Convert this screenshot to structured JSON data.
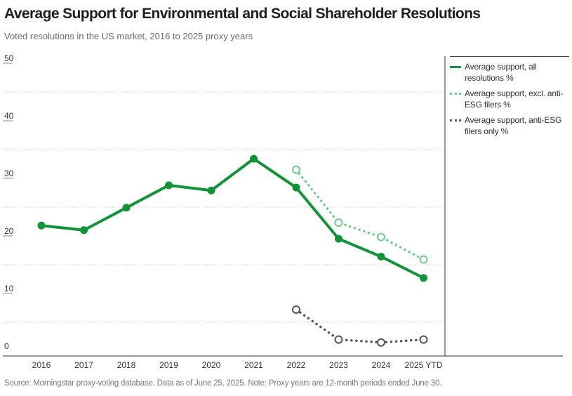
{
  "title": "Average Support for Environmental and Social Shareholder Resolutions",
  "subtitle": "Voted resolutions in the US market, 2016 to 2025 proxy years",
  "source": "Source: Morningstar proxy-voting database. Data as of June 25, 2025. Note: Proxy years are 12-month periods ended June 30.",
  "chart_data": {
    "type": "line",
    "categories": [
      "2016",
      "2017",
      "2018",
      "2019",
      "2020",
      "2021",
      "2022",
      "2023",
      "2024",
      "2025 YTD"
    ],
    "ylim": [
      0,
      50
    ],
    "yticks": [
      0,
      10,
      20,
      30,
      40,
      50
    ],
    "grid": true,
    "legend_position": "right",
    "series": [
      {
        "name": "Average support, all resolutions %",
        "style": "solid",
        "color": "#119439",
        "values": [
          21.8,
          21.0,
          24.9,
          28.8,
          27.9,
          33.4,
          28.4,
          19.5,
          16.4,
          12.7
        ]
      },
      {
        "name": "Average support, excl. anti-ESG filers %",
        "style": "dotted",
        "color": "#6ccd8a",
        "values": [
          null,
          null,
          null,
          null,
          null,
          null,
          31.5,
          22.3,
          19.8,
          15.9
        ]
      },
      {
        "name": "Average support, anti-ESG filers only %",
        "style": "dotted",
        "color": "#555555",
        "values": [
          null,
          null,
          null,
          null,
          null,
          null,
          7.2,
          2.0,
          1.5,
          2.0
        ]
      }
    ]
  }
}
